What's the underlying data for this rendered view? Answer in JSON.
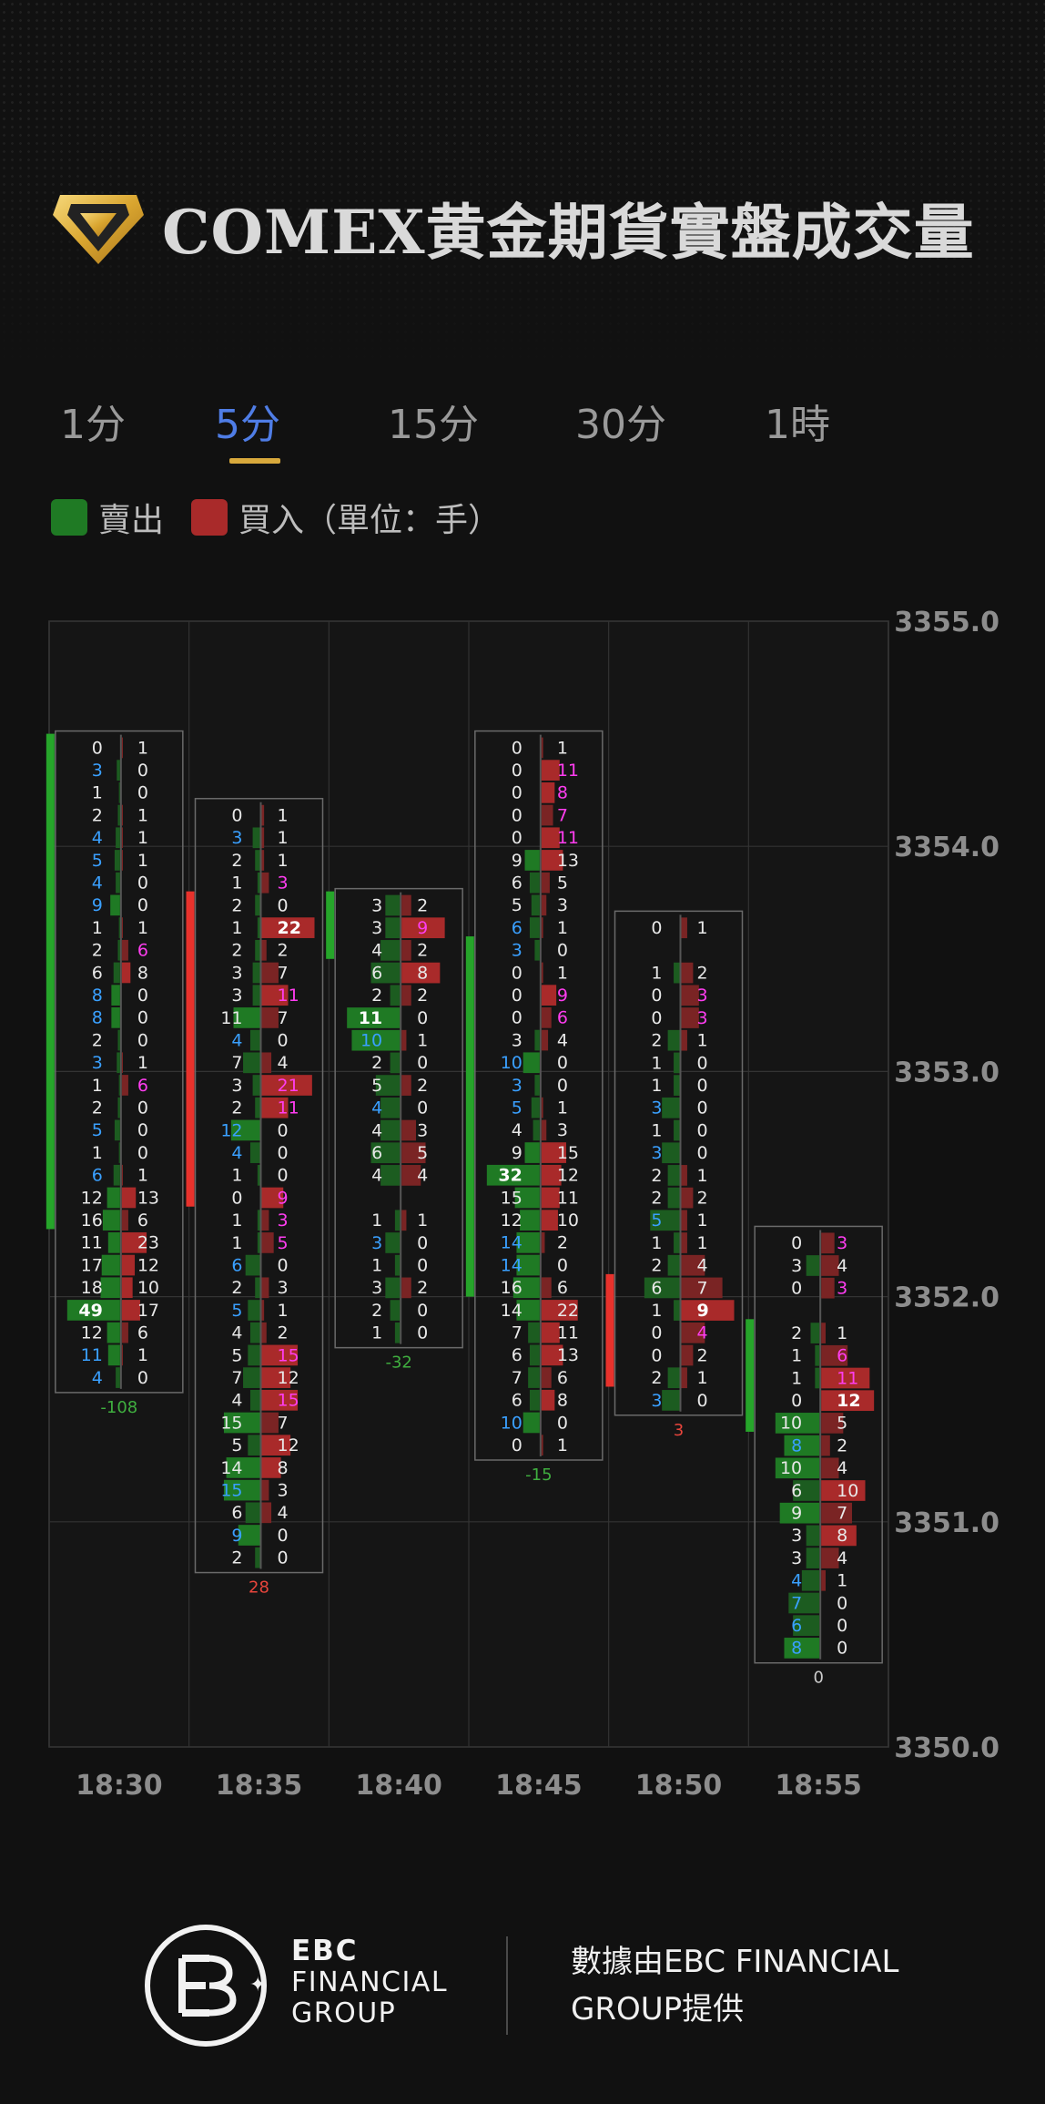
{
  "header": {
    "title": "COMEX黄金期貨實盤成交量",
    "icon": "gold-diamond-icon"
  },
  "tabs": [
    {
      "label": "1分",
      "active": false
    },
    {
      "label": "5分",
      "active": true
    },
    {
      "label": "15分",
      "active": false
    },
    {
      "label": "30分",
      "active": false
    },
    {
      "label": "1時",
      "active": false
    }
  ],
  "legend": {
    "sell_label": "賣出",
    "buy_label": "買入（單位：手）",
    "sell_color": "#1f7a24",
    "buy_color": "#a92a2a"
  },
  "chart_data": {
    "type": "footprint",
    "y_ticks": [
      "3355.0",
      "3354.0",
      "3353.0",
      "3352.0",
      "3351.0",
      "3350.0"
    ],
    "ylim": [
      3350.0,
      3355.0
    ],
    "price_step": 0.1,
    "x_ticks": [
      "18:30",
      "18:35",
      "18:40",
      "18:45",
      "18:50",
      "18:55"
    ],
    "grid": true,
    "candles": [
      {
        "time": "18:30",
        "top_price": 3354.5,
        "delta": "-108",
        "body_top": 3354.5,
        "body_bottom": 3352.3,
        "body_color": "#26a52a",
        "sell": [
          0,
          3,
          1,
          2,
          4,
          5,
          4,
          9,
          1,
          2,
          6,
          8,
          8,
          2,
          3,
          1,
          2,
          5,
          1,
          6,
          12,
          16,
          11,
          17,
          18,
          49,
          12,
          11,
          4
        ],
        "buy": [
          1,
          0,
          0,
          1,
          1,
          1,
          0,
          0,
          1,
          6,
          8,
          0,
          0,
          0,
          1,
          6,
          0,
          0,
          0,
          1,
          13,
          6,
          23,
          12,
          10,
          17,
          6,
          1,
          0
        ]
      },
      {
        "time": "18:35",
        "top_price": 3354.2,
        "delta": "28",
        "body_top": 3353.8,
        "body_bottom": 3352.4,
        "body_color": "#e8322c",
        "sell": [
          0,
          3,
          2,
          1,
          2,
          1,
          2,
          3,
          3,
          11,
          4,
          7,
          3,
          2,
          12,
          4,
          1,
          0,
          1,
          1,
          6,
          2,
          5,
          4,
          5,
          7,
          4,
          15,
          5,
          14,
          15,
          6,
          9,
          2
        ],
        "buy": [
          1,
          1,
          1,
          3,
          0,
          22,
          2,
          7,
          11,
          7,
          0,
          4,
          21,
          11,
          0,
          0,
          0,
          9,
          3,
          5,
          0,
          3,
          1,
          2,
          15,
          12,
          15,
          7,
          12,
          8,
          3,
          4,
          0,
          0
        ]
      },
      {
        "time": "18:40",
        "top_price": 3353.8,
        "delta": "-32",
        "body_top": 3353.8,
        "body_bottom": 3353.5,
        "body_color": "#26a52a",
        "sell": [
          3,
          3,
          4,
          6,
          2,
          11,
          10,
          2,
          5,
          4,
          4,
          6,
          4,
          null,
          1,
          3,
          1,
          3,
          2,
          1
        ],
        "buy": [
          2,
          9,
          2,
          8,
          2,
          0,
          1,
          0,
          2,
          0,
          3,
          5,
          4,
          null,
          1,
          0,
          0,
          2,
          0,
          0
        ]
      },
      {
        "time": "18:45",
        "top_price": 3354.5,
        "delta": "-15",
        "body_top": 3353.6,
        "body_bottom": 3352.0,
        "body_color": "#26a52a",
        "sell": [
          0,
          0,
          0,
          0,
          0,
          9,
          6,
          5,
          6,
          3,
          0,
          0,
          0,
          3,
          10,
          3,
          5,
          4,
          9,
          32,
          15,
          12,
          14,
          14,
          16,
          14,
          7,
          6,
          7,
          6,
          10,
          0
        ],
        "buy": [
          1,
          11,
          8,
          7,
          11,
          13,
          5,
          3,
          1,
          0,
          1,
          9,
          6,
          4,
          0,
          0,
          1,
          3,
          15,
          12,
          11,
          10,
          2,
          0,
          6,
          22,
          11,
          13,
          6,
          8,
          0,
          1
        ]
      },
      {
        "time": "18:50",
        "top_price": 3353.7,
        "delta": "3",
        "body_top": 3352.1,
        "body_bottom": 3351.6,
        "body_color": "#e8322c",
        "sell": [
          0,
          null,
          1,
          0,
          0,
          2,
          1,
          1,
          3,
          1,
          3,
          2,
          2,
          5,
          1,
          2,
          6,
          1,
          0,
          0,
          2,
          3
        ],
        "buy": [
          1,
          null,
          2,
          3,
          3,
          1,
          0,
          0,
          0,
          0,
          0,
          1,
          2,
          1,
          1,
          4,
          7,
          9,
          4,
          2,
          1,
          0
        ]
      },
      {
        "time": "18:55",
        "top_price": 3352.3,
        "delta": "0",
        "body_top": 3351.9,
        "body_bottom": 3351.4,
        "body_color": "#26a52a",
        "sell": [
          0,
          3,
          0,
          null,
          2,
          1,
          1,
          0,
          10,
          8,
          10,
          6,
          9,
          3,
          3,
          4,
          7,
          6,
          8
        ],
        "buy": [
          3,
          4,
          3,
          null,
          1,
          6,
          11,
          12,
          5,
          2,
          4,
          10,
          7,
          8,
          4,
          1,
          0,
          0,
          0
        ]
      }
    ]
  },
  "footer": {
    "brand_line1": "EBC",
    "brand_line2": "FINANCIAL",
    "brand_line3": "GROUP",
    "credit": "數據由EBC FINANCIAL\nGROUP提供"
  }
}
